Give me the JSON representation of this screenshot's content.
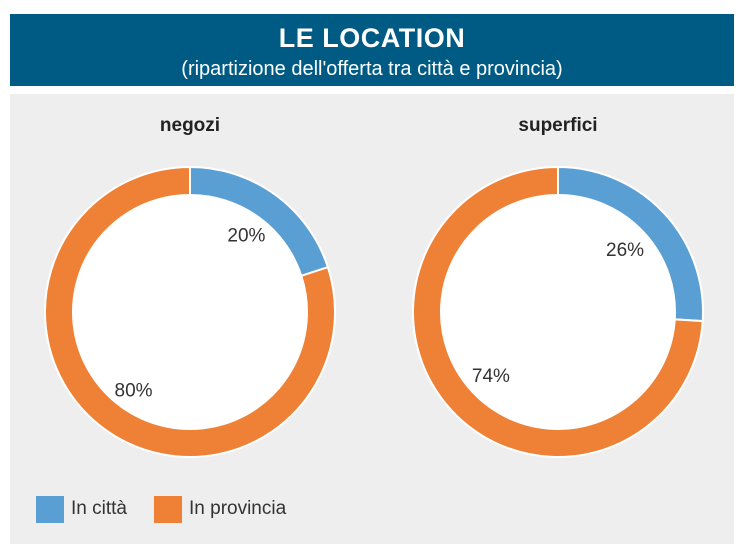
{
  "header": {
    "title": "LE LOCATION",
    "subtitle": "(ripartizione dell'offerta tra città e provincia)"
  },
  "colors": {
    "header_bg": "#005b84",
    "citta": "#5a9fd4",
    "provincia": "#ee8136",
    "panel_bg": "#eeeeef"
  },
  "legend": [
    {
      "label": "In città",
      "color": "#5a9fd4"
    },
    {
      "label": "In provincia",
      "color": "#ee8136"
    }
  ],
  "chart_data": [
    {
      "type": "pie",
      "title": "negozi",
      "labels": [
        "In città",
        "In provincia"
      ],
      "values": [
        20,
        80
      ],
      "value_labels": [
        "20%",
        "80%"
      ]
    },
    {
      "type": "pie",
      "title": "superfici",
      "labels": [
        "In città",
        "In provincia"
      ],
      "values": [
        26,
        74
      ],
      "value_labels": [
        "26%",
        "74%"
      ]
    }
  ]
}
